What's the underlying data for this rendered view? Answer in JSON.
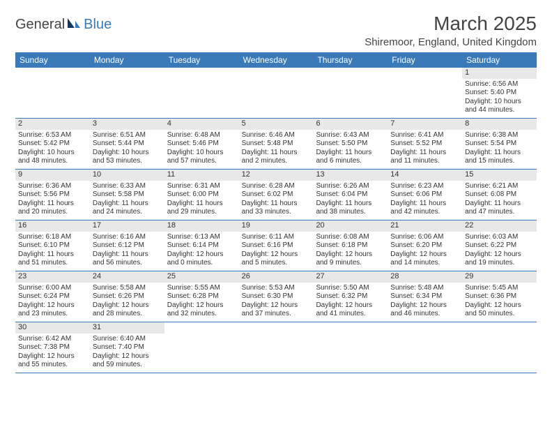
{
  "logo": {
    "text1": "General",
    "text2": "Blue"
  },
  "title": "March 2025",
  "location": "Shiremoor, England, United Kingdom",
  "colors": {
    "header_bg": "#3a7ab8",
    "header_text": "#ffffff",
    "daynum_bg": "#e8e8e8",
    "border": "#3a7ab8",
    "text": "#333333",
    "logo_gray": "#444444",
    "logo_blue": "#3a7ab8"
  },
  "day_headers": [
    "Sunday",
    "Monday",
    "Tuesday",
    "Wednesday",
    "Thursday",
    "Friday",
    "Saturday"
  ],
  "weeks": [
    [
      null,
      null,
      null,
      null,
      null,
      null,
      {
        "n": "1",
        "sunrise": "6:56 AM",
        "sunset": "5:40 PM",
        "daylight": "10 hours and 44 minutes."
      }
    ],
    [
      {
        "n": "2",
        "sunrise": "6:53 AM",
        "sunset": "5:42 PM",
        "daylight": "10 hours and 48 minutes."
      },
      {
        "n": "3",
        "sunrise": "6:51 AM",
        "sunset": "5:44 PM",
        "daylight": "10 hours and 53 minutes."
      },
      {
        "n": "4",
        "sunrise": "6:48 AM",
        "sunset": "5:46 PM",
        "daylight": "10 hours and 57 minutes."
      },
      {
        "n": "5",
        "sunrise": "6:46 AM",
        "sunset": "5:48 PM",
        "daylight": "11 hours and 2 minutes."
      },
      {
        "n": "6",
        "sunrise": "6:43 AM",
        "sunset": "5:50 PM",
        "daylight": "11 hours and 6 minutes."
      },
      {
        "n": "7",
        "sunrise": "6:41 AM",
        "sunset": "5:52 PM",
        "daylight": "11 hours and 11 minutes."
      },
      {
        "n": "8",
        "sunrise": "6:38 AM",
        "sunset": "5:54 PM",
        "daylight": "11 hours and 15 minutes."
      }
    ],
    [
      {
        "n": "9",
        "sunrise": "6:36 AM",
        "sunset": "5:56 PM",
        "daylight": "11 hours and 20 minutes."
      },
      {
        "n": "10",
        "sunrise": "6:33 AM",
        "sunset": "5:58 PM",
        "daylight": "11 hours and 24 minutes."
      },
      {
        "n": "11",
        "sunrise": "6:31 AM",
        "sunset": "6:00 PM",
        "daylight": "11 hours and 29 minutes."
      },
      {
        "n": "12",
        "sunrise": "6:28 AM",
        "sunset": "6:02 PM",
        "daylight": "11 hours and 33 minutes."
      },
      {
        "n": "13",
        "sunrise": "6:26 AM",
        "sunset": "6:04 PM",
        "daylight": "11 hours and 38 minutes."
      },
      {
        "n": "14",
        "sunrise": "6:23 AM",
        "sunset": "6:06 PM",
        "daylight": "11 hours and 42 minutes."
      },
      {
        "n": "15",
        "sunrise": "6:21 AM",
        "sunset": "6:08 PM",
        "daylight": "11 hours and 47 minutes."
      }
    ],
    [
      {
        "n": "16",
        "sunrise": "6:18 AM",
        "sunset": "6:10 PM",
        "daylight": "11 hours and 51 minutes."
      },
      {
        "n": "17",
        "sunrise": "6:16 AM",
        "sunset": "6:12 PM",
        "daylight": "11 hours and 56 minutes."
      },
      {
        "n": "18",
        "sunrise": "6:13 AM",
        "sunset": "6:14 PM",
        "daylight": "12 hours and 0 minutes."
      },
      {
        "n": "19",
        "sunrise": "6:11 AM",
        "sunset": "6:16 PM",
        "daylight": "12 hours and 5 minutes."
      },
      {
        "n": "20",
        "sunrise": "6:08 AM",
        "sunset": "6:18 PM",
        "daylight": "12 hours and 9 minutes."
      },
      {
        "n": "21",
        "sunrise": "6:06 AM",
        "sunset": "6:20 PM",
        "daylight": "12 hours and 14 minutes."
      },
      {
        "n": "22",
        "sunrise": "6:03 AM",
        "sunset": "6:22 PM",
        "daylight": "12 hours and 19 minutes."
      }
    ],
    [
      {
        "n": "23",
        "sunrise": "6:00 AM",
        "sunset": "6:24 PM",
        "daylight": "12 hours and 23 minutes."
      },
      {
        "n": "24",
        "sunrise": "5:58 AM",
        "sunset": "6:26 PM",
        "daylight": "12 hours and 28 minutes."
      },
      {
        "n": "25",
        "sunrise": "5:55 AM",
        "sunset": "6:28 PM",
        "daylight": "12 hours and 32 minutes."
      },
      {
        "n": "26",
        "sunrise": "5:53 AM",
        "sunset": "6:30 PM",
        "daylight": "12 hours and 37 minutes."
      },
      {
        "n": "27",
        "sunrise": "5:50 AM",
        "sunset": "6:32 PM",
        "daylight": "12 hours and 41 minutes."
      },
      {
        "n": "28",
        "sunrise": "5:48 AM",
        "sunset": "6:34 PM",
        "daylight": "12 hours and 46 minutes."
      },
      {
        "n": "29",
        "sunrise": "5:45 AM",
        "sunset": "6:36 PM",
        "daylight": "12 hours and 50 minutes."
      }
    ],
    [
      {
        "n": "30",
        "sunrise": "6:42 AM",
        "sunset": "7:38 PM",
        "daylight": "12 hours and 55 minutes."
      },
      {
        "n": "31",
        "sunrise": "6:40 AM",
        "sunset": "7:40 PM",
        "daylight": "12 hours and 59 minutes."
      },
      null,
      null,
      null,
      null,
      null
    ]
  ]
}
